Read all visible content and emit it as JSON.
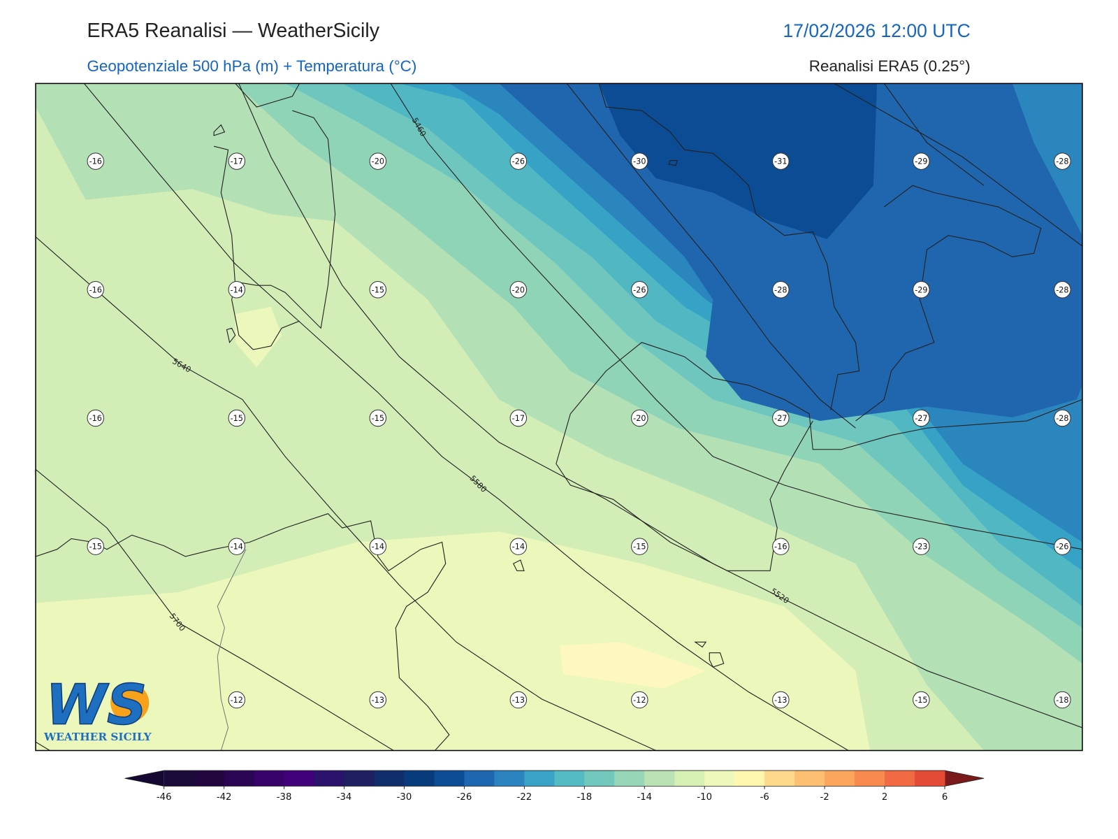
{
  "header": {
    "title": "ERA5 Reanalisi — WeatherSicily",
    "datetime": "17/02/2026 12:00 UTC",
    "subtitle": "Geopotenziale 500 hPa (m) + Temperatura (°C)",
    "source": "Reanalisi ERA5 (0.25°)"
  },
  "map": {
    "temperature_labels": [
      [
        -16,
        -17,
        -20,
        -26,
        -30,
        -31,
        -29,
        -28
      ],
      [
        -16,
        -14,
        -15,
        -20,
        -26,
        -28,
        -29,
        -28
      ],
      [
        -16,
        -15,
        -15,
        -17,
        -20,
        -27,
        -27,
        -28
      ],
      [
        -15,
        -14,
        -14,
        -14,
        -15,
        -16,
        -23,
        -26
      ],
      [
        null,
        -12,
        -13,
        -13,
        -12,
        -13,
        -15,
        -18
      ]
    ],
    "contour_labels": [
      5460,
      5640,
      5580,
      5700,
      5520
    ]
  },
  "colorbar": {
    "ticks": [
      -46,
      -42,
      -38,
      -34,
      -30,
      -26,
      -22,
      -18,
      -14,
      -10,
      -6,
      -2,
      2,
      6
    ],
    "colors": [
      "#1b0b3b",
      "#22063f",
      "#2b0454",
      "#37036a",
      "#41017a",
      "#2b136c",
      "#1f2061",
      "#0f2e6b",
      "#083b7c",
      "#0b4c94",
      "#1e67b0",
      "#2b84bf",
      "#3aa2c6",
      "#54bac3",
      "#73c8bd",
      "#98d6b8",
      "#b9e3b5",
      "#d6efb3",
      "#eef8bb",
      "#fff7b0",
      "#fed98b",
      "#fdbf71",
      "#fca55d",
      "#f88a4f",
      "#f16a43",
      "#e34b37"
    ],
    "under_color": "#150933",
    "over_color": "#7a1a1a"
  },
  "logo": {
    "mark": "WS",
    "text": "WEATHER SICILY"
  }
}
